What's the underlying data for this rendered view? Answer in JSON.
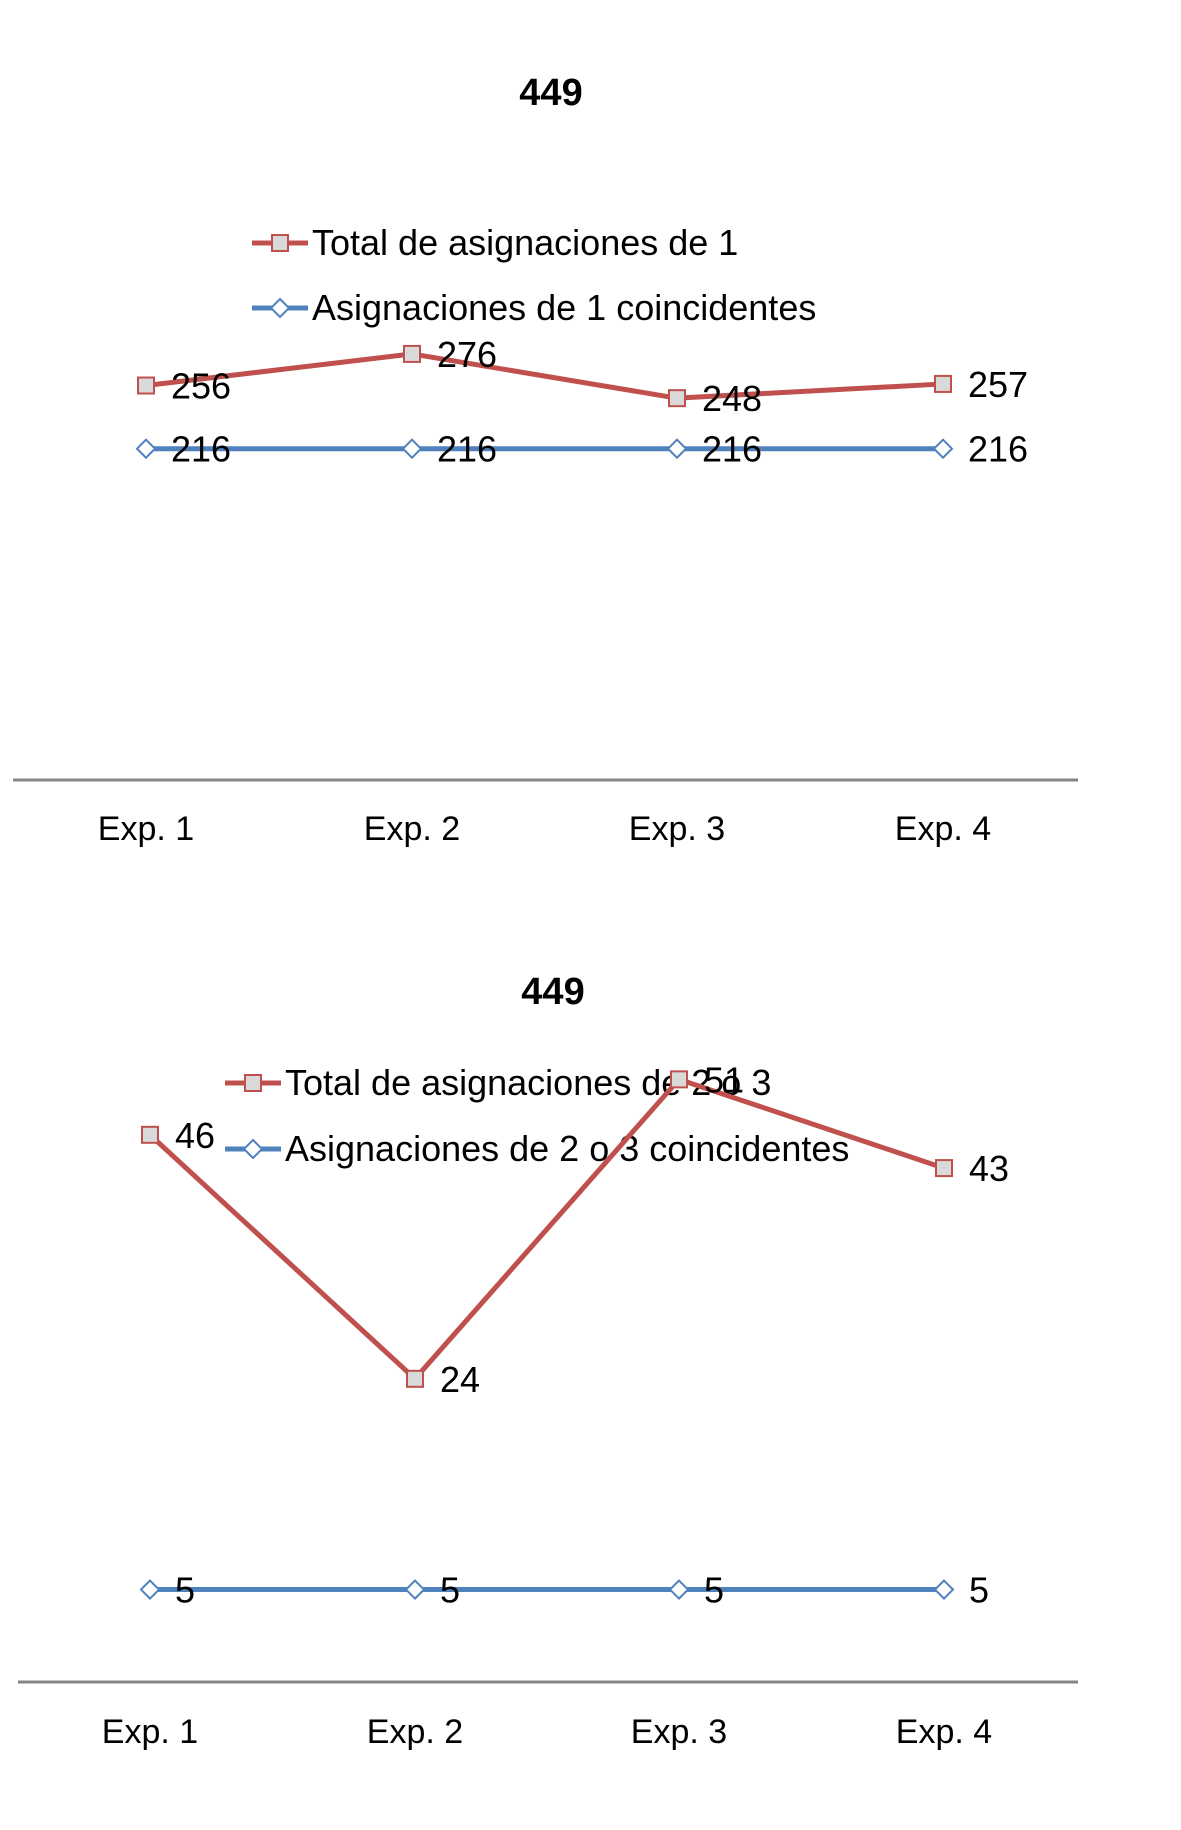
{
  "chart_data": [
    {
      "type": "line",
      "title": "449",
      "categories": [
        "Exp. 1",
        "Exp. 2",
        "Exp. 3",
        "Exp. 4"
      ],
      "series": [
        {
          "name": "Total de asignaciones de 1",
          "values": [
            256,
            276,
            248,
            257
          ],
          "color": "#c0504d",
          "marker": "square"
        },
        {
          "name": "Asignaciones de 1 coincidentes",
          "values": [
            216,
            216,
            216,
            216
          ],
          "color": "#4f81bd",
          "marker": "diamond"
        }
      ],
      "xlabel": "",
      "ylabel": "",
      "ylim": [
        0,
        500
      ],
      "grid": false,
      "legend": "top",
      "data_labels": true
    },
    {
      "type": "line",
      "title": "449",
      "categories": [
        "Exp. 1",
        "Exp. 2",
        "Exp. 3",
        "Exp. 4"
      ],
      "series": [
        {
          "name": "Total de asignaciones de 2 o 3",
          "values": [
            46,
            24,
            51,
            43
          ],
          "color": "#c0504d",
          "marker": "square"
        },
        {
          "name": "Asignaciones de 2 o 3 coincidentes",
          "values": [
            5,
            5,
            5,
            5
          ],
          "color": "#4f81bd",
          "marker": "diamond"
        }
      ],
      "xlabel": "",
      "ylabel": "",
      "ylim": [
        0,
        55
      ],
      "grid": false,
      "legend": "top",
      "data_labels": true
    }
  ]
}
